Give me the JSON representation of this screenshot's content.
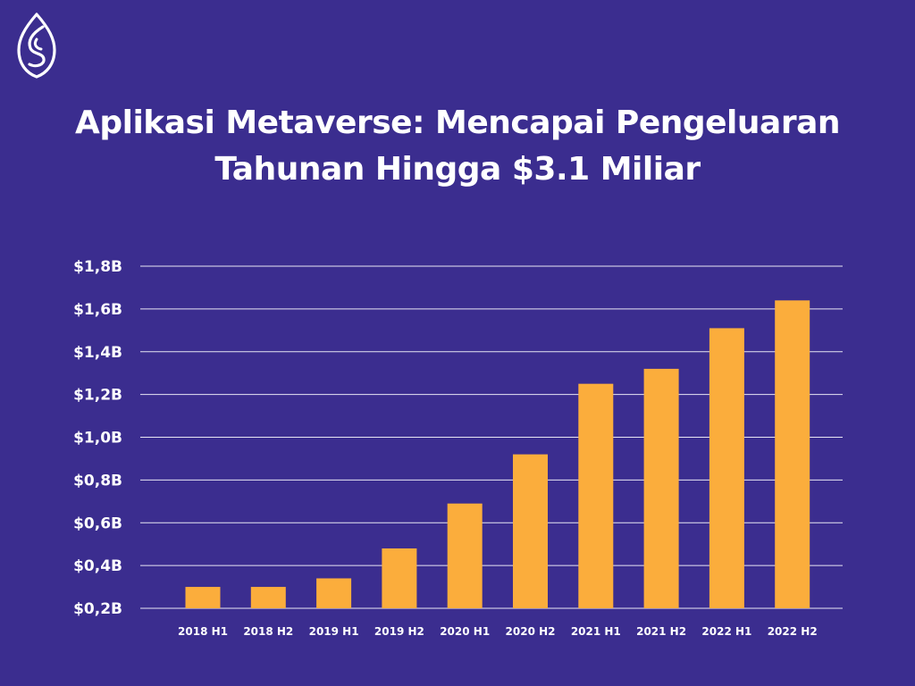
{
  "header": {
    "logo_icon": "leaf-s-logo-icon",
    "title_line1": "Aplikasi Metaverse: Mencapai Pengeluaran",
    "title_line2": "Tahunan Hingga $3.1 Miliar"
  },
  "colors": {
    "background": "#3b2d8f",
    "bar": "#fbad3c",
    "grid": "#e8e6f4",
    "text": "#ffffff"
  },
  "chart_data": {
    "type": "bar",
    "title": "Aplikasi Metaverse: Mencapai Pengeluaran Tahunan Hingga $3.1 Miliar",
    "xlabel": "",
    "ylabel": "",
    "categories": [
      "2018 H1",
      "2018 H2",
      "2019 H1",
      "2019 H2",
      "2020 H1",
      "2020 H2",
      "2021 H1",
      "2021 H2",
      "2022 H1",
      "2022 H2"
    ],
    "values": [
      0.3,
      0.3,
      0.34,
      0.48,
      0.69,
      0.92,
      1.25,
      1.32,
      1.51,
      1.64
    ],
    "ylim": [
      0.2,
      1.8
    ],
    "yticks": [
      0.2,
      0.4,
      0.6,
      0.8,
      1.0,
      1.2,
      1.4,
      1.6,
      1.8
    ],
    "ytick_labels": [
      "$0,2B",
      "$0,4B",
      "$0,6B",
      "$0,8B",
      "$1,0B",
      "$1,2B",
      "$1,4B",
      "$1,6B",
      "$1,8B"
    ],
    "grid": true,
    "legend": "none"
  }
}
